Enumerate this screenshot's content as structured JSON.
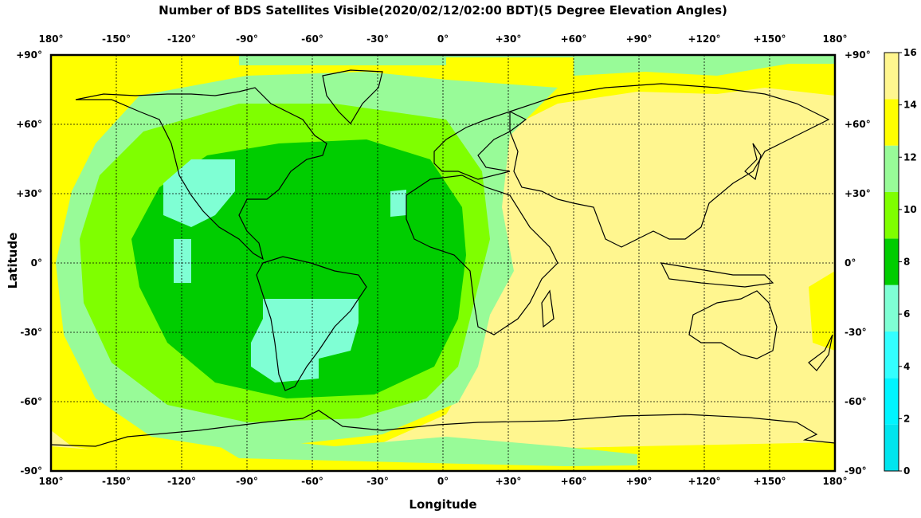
{
  "title": "Number of BDS Satellites Visible(2020/02/12/02:00 BDT)(5 Degree Elevation Angles)",
  "xlabel": "Longitude",
  "ylabel": "Latitude",
  "x_ticks": [
    "180°",
    "-150°",
    "-120°",
    "-90°",
    "-60°",
    "-30°",
    "0°",
    "+30°",
    "+60°",
    "+90°",
    "+120°",
    "+150°",
    "180°"
  ],
  "y_ticks": [
    "+90°",
    "+60°",
    "+30°",
    "0°",
    "-30°",
    "-60°",
    "-90°"
  ],
  "colorbar": {
    "ticks": [
      "0",
      "2",
      "4",
      "6",
      "8",
      "10",
      "12",
      "14",
      "16"
    ],
    "colors": [
      "#00e5ee",
      "#00f5ff",
      "#33ffff",
      "#7fffd4",
      "#00cd00",
      "#7fff00",
      "#98fb98",
      "#ffff00",
      "#fff68f"
    ]
  },
  "chart_data": {
    "type": "heatmap",
    "title": "Number of BDS Satellites Visible(2020/02/12/02:00 BDT)(5 Degree Elevation Angles)",
    "xlabel": "Longitude",
    "ylabel": "Latitude",
    "xlim": [
      -180,
      180
    ],
    "ylim": [
      -90,
      90
    ],
    "grid": true,
    "colorbar_range": [
      0,
      16
    ],
    "value_bins": [
      {
        "range": [
          4,
          6
        ],
        "color": "#7fffd4"
      },
      {
        "range": [
          6,
          8
        ],
        "color": "#00cd00"
      },
      {
        "range": [
          8,
          10
        ],
        "color": "#7fff00"
      },
      {
        "range": [
          10,
          12
        ],
        "color": "#98fb98"
      },
      {
        "range": [
          12,
          14
        ],
        "color": "#ffff00"
      },
      {
        "range": [
          14,
          16
        ],
        "color": "#fff68f"
      }
    ]
  }
}
